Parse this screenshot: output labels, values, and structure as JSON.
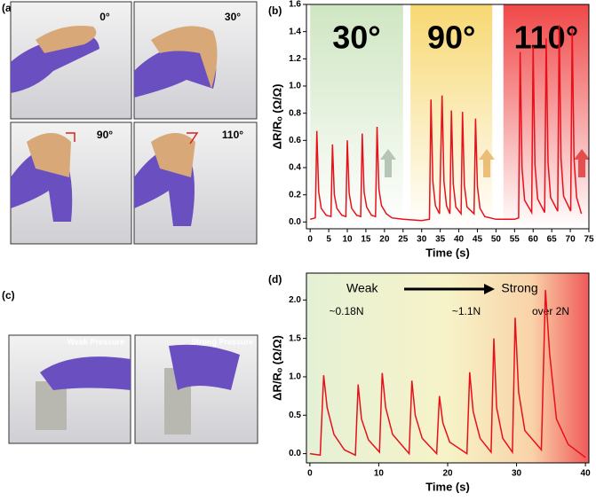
{
  "panels": {
    "a": {
      "label": "(a)",
      "angles": [
        "0°",
        "30°",
        "90°",
        "110°"
      ]
    },
    "c": {
      "label": "(c)",
      "captions": [
        "Weak Pressure",
        "Strong Pressure"
      ]
    }
  },
  "chart_data": [
    {
      "type": "line",
      "label": "(b)",
      "x_label": "Time (s)",
      "y_label": "ΔR/Rₒ (Ω/Ω)",
      "color": "#e8101a",
      "regions": [
        {
          "label": "30°",
          "xlim": [
            0,
            25
          ],
          "color": "#cfe6c2"
        },
        {
          "label": "90°",
          "xlim": [
            27,
            49
          ],
          "color": "#f7d873"
        },
        {
          "label": "110°",
          "xlim": [
            52,
            75
          ],
          "color": "#f04848"
        }
      ],
      "x": [
        0,
        1.4,
        1.8,
        2.3,
        3,
        4.3,
        5.6,
        6,
        6.5,
        7.2,
        8.5,
        9.6,
        10,
        10.5,
        11.2,
        12.5,
        13.6,
        14,
        14.5,
        15.2,
        16.5,
        17.6,
        18,
        18.5,
        19.2,
        20.5,
        22,
        25,
        30,
        32.1,
        32.5,
        33,
        33.7,
        34.8,
        35.5,
        36,
        36.7,
        37.6,
        38,
        38.5,
        39.2,
        40.6,
        41,
        41.5,
        42.2,
        44.1,
        44.5,
        45,
        45.7,
        47,
        50,
        55,
        56.1,
        56.5,
        57,
        57.7,
        59.6,
        60,
        60.5,
        61.2,
        63.1,
        63.5,
        64,
        64.7,
        66.6,
        67,
        67.5,
        68.2,
        70.1,
        70.5,
        71,
        71.7,
        73
      ],
      "values": [
        0.02,
        0.03,
        0.67,
        0.22,
        0.1,
        0.05,
        0.04,
        0.57,
        0.2,
        0.1,
        0.05,
        0.04,
        0.6,
        0.21,
        0.1,
        0.05,
        0.04,
        0.65,
        0.22,
        0.11,
        0.05,
        0.04,
        0.7,
        0.24,
        0.12,
        0.06,
        0.03,
        0.02,
        0.01,
        0.02,
        0.9,
        0.3,
        0.12,
        0.06,
        0.93,
        0.3,
        0.12,
        0.06,
        0.82,
        0.28,
        0.11,
        0.06,
        0.81,
        0.27,
        0.11,
        0.06,
        0.76,
        0.26,
        0.1,
        0.04,
        0.02,
        0.02,
        0.03,
        1.25,
        0.4,
        0.16,
        0.07,
        1.29,
        0.42,
        0.17,
        0.07,
        1.35,
        0.44,
        0.18,
        0.08,
        1.45,
        0.47,
        0.19,
        0.08,
        1.42,
        0.46,
        0.18,
        0.06
      ],
      "xlim": [
        -1,
        75
      ],
      "xticks": [
        0,
        5,
        10,
        15,
        20,
        25,
        30,
        35,
        40,
        45,
        50,
        55,
        60,
        65,
        70,
        75
      ],
      "ylim": [
        -0.05,
        1.6
      ],
      "yticks": [
        {
          "value": 0,
          "label": "0.0"
        },
        0.2,
        0.4,
        0.6,
        0.8,
        {
          "value": 1,
          "label": "1.0"
        },
        1.2,
        1.4,
        1.6
      ]
    },
    {
      "type": "line",
      "label": "(d)",
      "x_label": "Time (s)",
      "y_label": "ΔR/Rₒ (Ω/Ω)",
      "color": "#e8101a",
      "annotations": [
        "Weak",
        "Strong",
        "~0.18N",
        "~1.1N",
        "over 2N"
      ],
      "x": [
        0,
        1.5,
        2,
        2.5,
        3.5,
        5,
        6.6,
        7,
        7.5,
        8.5,
        10.1,
        10.5,
        11,
        12,
        14.4,
        14.8,
        15.3,
        16.3,
        18.4,
        18.8,
        19.3,
        20.3,
        22.8,
        23.2,
        23.7,
        24.7,
        26.3,
        26.7,
        27.1,
        28,
        29.4,
        29.8,
        30.3,
        31.2,
        33.6,
        34.2,
        34.8,
        35.8,
        37.5,
        40
      ],
      "values": [
        0,
        -0.02,
        1.02,
        0.6,
        0.25,
        0.05,
        -0.02,
        0.9,
        0.45,
        0.18,
        0.02,
        1.05,
        0.6,
        0.25,
        0,
        0.95,
        0.5,
        0.2,
        0,
        0.75,
        0.4,
        0.15,
        0,
        1.06,
        0.55,
        0.2,
        0.02,
        1.5,
        0.6,
        0.2,
        0.02,
        1.77,
        0.8,
        0.3,
        0.05,
        2.13,
        1.3,
        0.45,
        0.12,
        -0.05
      ],
      "xlim": [
        -0.5,
        40.5
      ],
      "xticks": [
        0,
        10,
        20,
        30,
        40
      ],
      "ylim": [
        -0.12,
        2.35
      ],
      "yticks": [
        {
          "value": 0,
          "label": "0.0"
        },
        0.5,
        {
          "value": 1,
          "label": "1.0"
        },
        1.5,
        {
          "value": 2,
          "label": "2.0"
        }
      ]
    }
  ]
}
